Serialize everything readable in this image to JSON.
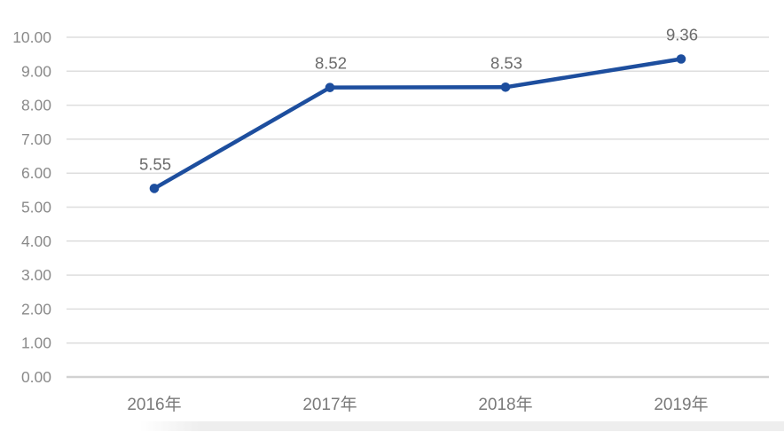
{
  "chart_data": {
    "type": "line",
    "title": "",
    "xlabel": "",
    "ylabel": "",
    "categories": [
      "2016年",
      "2017年",
      "2018年",
      "2019年"
    ],
    "series": [
      {
        "name": "",
        "values": [
          5.55,
          8.52,
          8.53,
          9.36
        ],
        "data_labels": [
          "5.55",
          "8.52",
          "8.53",
          "9.36"
        ]
      }
    ],
    "ylim": [
      0,
      10
    ],
    "y_tick_labels": [
      "0.00",
      "1.00",
      "2.00",
      "3.00",
      "4.00",
      "5.00",
      "6.00",
      "7.00",
      "8.00",
      "9.00",
      "10.00"
    ],
    "grid": true,
    "legend": false,
    "marker": "circle",
    "colors": {
      "series": "#1d4e9e",
      "gridline": "#dedede",
      "axis_line": "#d2d2d2",
      "y_tick_label": "#8a8a8a",
      "x_tick_label": "#7a7a7a",
      "data_label": "#6b6b6b",
      "background": "#ffffff",
      "bottom_strip": "#eeeeee"
    }
  }
}
